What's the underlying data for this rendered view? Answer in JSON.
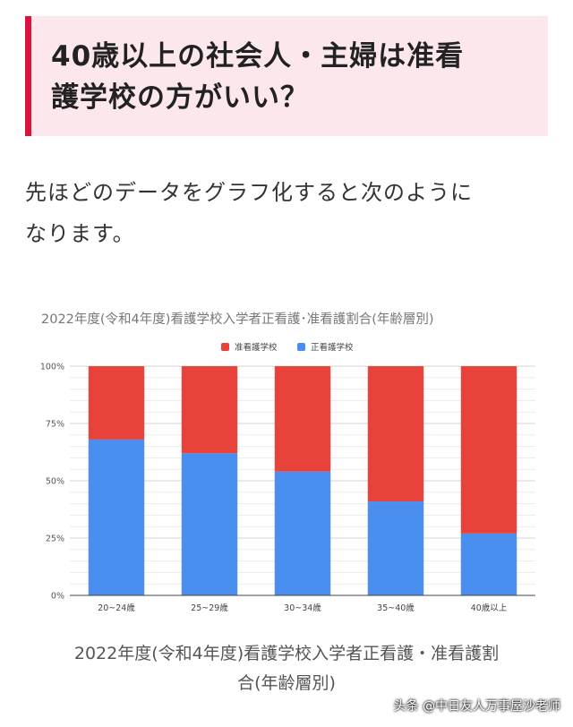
{
  "heading": {
    "line1": "40歳以上の社会人・主婦は准看",
    "line2": "護学校の方がいい？"
  },
  "intro": {
    "line1": "先ほどのデータをグラフ化すると次のように",
    "line2": "なります。"
  },
  "colors": {
    "accent": "#d8143c",
    "heading_bg": "#fce8ec",
    "series_junkango": "#e8433a",
    "series_seikango": "#4a8ef0"
  },
  "chart_data": {
    "type": "bar",
    "stacked": true,
    "title": "2022年度(令和4年度)看護学校入学者正看護･准看護割合(年齢層別)",
    "categories": [
      "20~24歳",
      "25~29歳",
      "30~34歳",
      "35~40歳",
      "40歳以上"
    ],
    "series": [
      {
        "name": "正看護学校",
        "color": "#4a8ef0",
        "values": [
          68,
          62,
          54,
          41,
          27
        ]
      },
      {
        "name": "准看護学校",
        "color": "#e8433a",
        "values": [
          32,
          38,
          46,
          59,
          73
        ]
      }
    ],
    "legend_order": [
      "准看護学校",
      "正看護学校"
    ],
    "legend_position": "top-center",
    "y_ticks": [
      "0%",
      "25%",
      "50%",
      "75%",
      "100%"
    ],
    "ylim": [
      0,
      100
    ],
    "grid": true
  },
  "caption": {
    "line1": "2022年度(令和4年度)看護学校入学者正看護・准看護割",
    "line2": "合(年齢層別)"
  },
  "watermark": "头条 @中日友人万事屋沙老师"
}
